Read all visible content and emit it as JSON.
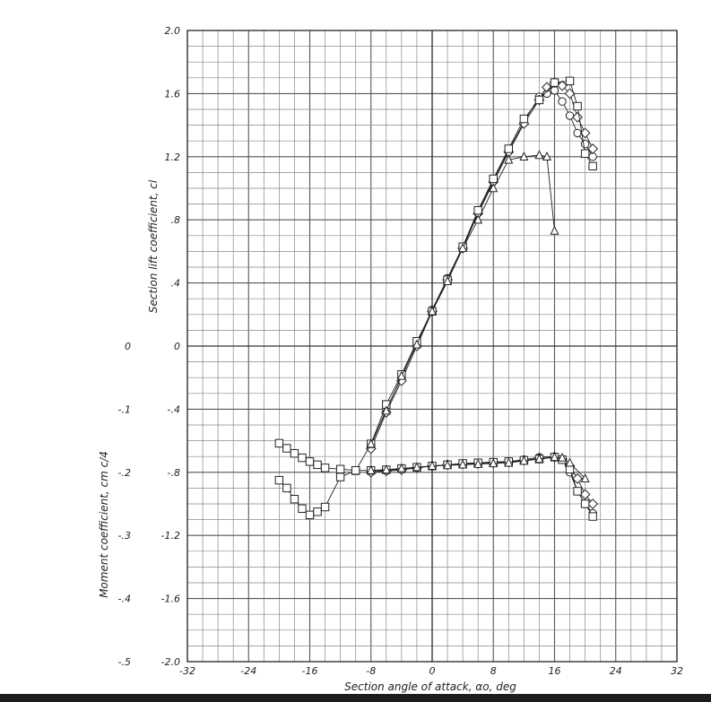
{
  "chart_data": {
    "type": "line",
    "xlabel": "Section angle of attack, αo, deg",
    "ylabel_lift": "Section lift coefficient, cl",
    "ylabel_moment": "Moment coefficient, cm c/4",
    "x_ticks": [
      "-32",
      "-24",
      "-16",
      "-8",
      "0",
      "8",
      "16",
      "24",
      "32"
    ],
    "lift_ticks": [
      "2.0",
      "1.6",
      "1.2",
      ".8",
      ".4",
      "0",
      "-.4",
      "-.8",
      "-1.2",
      "-1.6",
      "-2.0"
    ],
    "moment_ticks": [
      "0",
      "-.1",
      "-.2",
      "-.3",
      "-.4",
      "-.5"
    ],
    "xlim": [
      -32,
      32
    ],
    "ylim": [
      -2.0,
      2.0
    ],
    "moment_ylim": [
      -0.5,
      0
    ],
    "grid": true,
    "series": [
      {
        "marker": "circle",
        "lift": [
          [
            -8,
            -0.63
          ],
          [
            -6,
            -0.4
          ],
          [
            -4,
            -0.2
          ],
          [
            -2,
            0.02
          ],
          [
            0,
            0.23
          ],
          [
            2,
            0.43
          ],
          [
            4,
            0.63
          ],
          [
            6,
            0.85
          ],
          [
            8,
            1.05
          ],
          [
            10,
            1.24
          ],
          [
            12,
            1.42
          ],
          [
            14,
            1.58
          ],
          [
            15,
            1.6
          ],
          [
            16,
            1.62
          ],
          [
            17,
            1.55
          ],
          [
            18,
            1.46
          ],
          [
            19,
            1.35
          ],
          [
            20,
            1.28
          ],
          [
            21,
            1.2
          ]
        ],
        "moment": [
          [
            -8,
            -0.198
          ],
          [
            -6,
            -0.197
          ],
          [
            -4,
            -0.195
          ],
          [
            -2,
            -0.192
          ],
          [
            0,
            -0.19
          ],
          [
            2,
            -0.188
          ],
          [
            4,
            -0.186
          ],
          [
            6,
            -0.185
          ],
          [
            8,
            -0.184
          ],
          [
            10,
            -0.183
          ],
          [
            12,
            -0.18
          ],
          [
            14,
            -0.176
          ],
          [
            16,
            -0.175
          ],
          [
            17,
            -0.18
          ],
          [
            18,
            -0.2
          ],
          [
            19,
            -0.23
          ],
          [
            20,
            -0.25
          ],
          [
            21,
            -0.265
          ]
        ]
      },
      {
        "marker": "diamond",
        "lift": [
          [
            -8,
            -0.65
          ],
          [
            -6,
            -0.42
          ],
          [
            -4,
            -0.22
          ],
          [
            -2,
            0.0
          ],
          [
            0,
            0.22
          ],
          [
            2,
            0.42
          ],
          [
            4,
            0.62
          ],
          [
            6,
            0.84
          ],
          [
            8,
            1.04
          ],
          [
            10,
            1.23
          ],
          [
            12,
            1.41
          ],
          [
            14,
            1.56
          ],
          [
            15,
            1.64
          ],
          [
            16,
            1.67
          ],
          [
            17,
            1.65
          ],
          [
            18,
            1.6
          ],
          [
            19,
            1.45
          ],
          [
            20,
            1.35
          ],
          [
            21,
            1.25
          ]
        ],
        "moment": [
          [
            -8,
            -0.2
          ],
          [
            -6,
            -0.198
          ],
          [
            -4,
            -0.196
          ],
          [
            -2,
            -0.193
          ],
          [
            0,
            -0.19
          ],
          [
            2,
            -0.188
          ],
          [
            4,
            -0.187
          ],
          [
            6,
            -0.186
          ],
          [
            8,
            -0.185
          ],
          [
            10,
            -0.184
          ],
          [
            12,
            -0.181
          ],
          [
            14,
            -0.178
          ],
          [
            16,
            -0.176
          ],
          [
            17,
            -0.179
          ],
          [
            18,
            -0.19
          ],
          [
            19,
            -0.21
          ],
          [
            20,
            -0.235
          ],
          [
            21,
            -0.25
          ]
        ]
      },
      {
        "marker": "square",
        "lift": [
          [
            -20,
            -0.85
          ],
          [
            -19,
            -0.9
          ],
          [
            -18,
            -0.97
          ],
          [
            -17,
            -1.03
          ],
          [
            -16,
            -1.07
          ],
          [
            -15,
            -1.05
          ],
          [
            -14,
            -1.02
          ],
          [
            -12,
            -0.83
          ],
          [
            -10,
            -0.79
          ],
          [
            -8,
            -0.62
          ],
          [
            -6,
            -0.37
          ],
          [
            -4,
            -0.18
          ],
          [
            -2,
            0.03
          ],
          [
            0,
            0.22
          ],
          [
            2,
            0.42
          ],
          [
            4,
            0.63
          ],
          [
            6,
            0.86
          ],
          [
            8,
            1.06
          ],
          [
            10,
            1.25
          ],
          [
            12,
            1.44
          ],
          [
            14,
            1.56
          ],
          [
            16,
            1.67
          ],
          [
            18,
            1.68
          ],
          [
            19,
            1.52
          ],
          [
            20,
            1.22
          ],
          [
            21,
            1.14
          ]
        ],
        "moment": [
          [
            -20,
            -0.154
          ],
          [
            -19,
            -0.162
          ],
          [
            -18,
            -0.17
          ],
          [
            -17,
            -0.177
          ],
          [
            -16,
            -0.183
          ],
          [
            -15,
            -0.188
          ],
          [
            -14,
            -0.193
          ],
          [
            -12,
            -0.195
          ],
          [
            -10,
            -0.197
          ],
          [
            -8,
            -0.197
          ],
          [
            -6,
            -0.196
          ],
          [
            -4,
            -0.194
          ],
          [
            -2,
            -0.192
          ],
          [
            0,
            -0.19
          ],
          [
            2,
            -0.188
          ],
          [
            4,
            -0.186
          ],
          [
            6,
            -0.185
          ],
          [
            8,
            -0.184
          ],
          [
            10,
            -0.183
          ],
          [
            12,
            -0.181
          ],
          [
            14,
            -0.179
          ],
          [
            16,
            -0.176
          ],
          [
            17,
            -0.18
          ],
          [
            18,
            -0.195
          ],
          [
            19,
            -0.23
          ],
          [
            20,
            -0.25
          ],
          [
            21,
            -0.27
          ]
        ]
      },
      {
        "marker": "triangle",
        "lift": [
          [
            -8,
            -0.62
          ],
          [
            -6,
            -0.41
          ],
          [
            -4,
            -0.19
          ],
          [
            -2,
            0.01
          ],
          [
            0,
            0.22
          ],
          [
            2,
            0.41
          ],
          [
            4,
            0.62
          ],
          [
            6,
            0.8
          ],
          [
            8,
            1.0
          ],
          [
            10,
            1.18
          ],
          [
            12,
            1.2
          ],
          [
            14,
            1.21
          ],
          [
            15,
            1.2
          ],
          [
            16,
            0.73
          ]
        ],
        "moment": [
          [
            -8,
            -0.197
          ],
          [
            -6,
            -0.196
          ],
          [
            -4,
            -0.194
          ],
          [
            -2,
            -0.192
          ],
          [
            0,
            -0.19
          ],
          [
            2,
            -0.189
          ],
          [
            4,
            -0.188
          ],
          [
            6,
            -0.187
          ],
          [
            8,
            -0.186
          ],
          [
            10,
            -0.185
          ],
          [
            12,
            -0.182
          ],
          [
            14,
            -0.179
          ],
          [
            16,
            -0.176
          ],
          [
            17,
            -0.177
          ],
          [
            18,
            -0.185
          ],
          [
            20,
            -0.21
          ]
        ]
      }
    ]
  }
}
